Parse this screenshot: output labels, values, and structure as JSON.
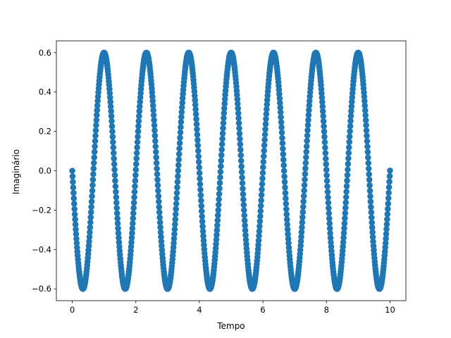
{
  "chart_data": {
    "type": "scatter",
    "title": "",
    "xlabel": "Tempo",
    "ylabel": "Imaginário",
    "xlim": [
      -0.5,
      10.5
    ],
    "ylim": [
      -0.66,
      0.66
    ],
    "x_ticks": [
      0,
      2,
      4,
      6,
      8,
      10
    ],
    "x_tick_labels": [
      "0",
      "2",
      "4",
      "6",
      "8",
      "10"
    ],
    "y_ticks": [
      -0.6,
      -0.4,
      -0.2,
      0.0,
      0.2,
      0.4,
      0.6
    ],
    "y_tick_labels": [
      "−0.6",
      "−0.4",
      "−0.2",
      "0.0",
      "0.2",
      "0.4",
      "0.6"
    ],
    "grid": false,
    "legend": "none",
    "series": [
      {
        "marker_color": "#1f77b4",
        "marker": "circle",
        "function": "y = -0.6 * sin(2*pi*x / 1.3333)",
        "x_range": [
          0,
          10
        ],
        "n_points": 1000
      }
    ]
  }
}
